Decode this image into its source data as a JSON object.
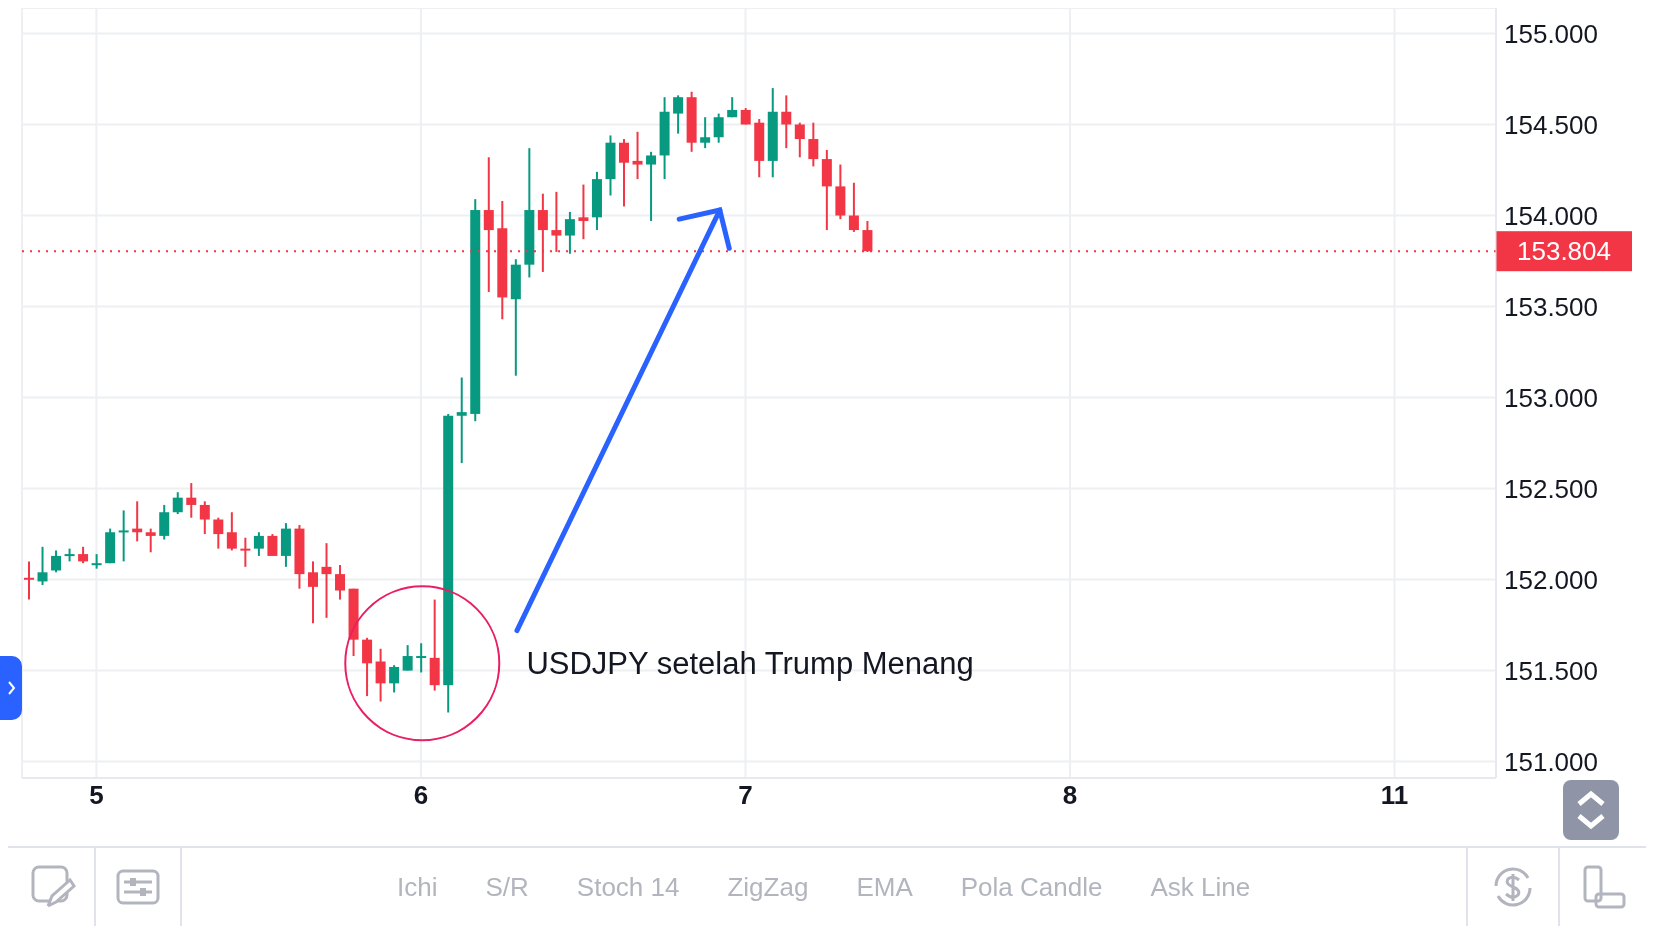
{
  "chart_data": {
    "type": "candlestick",
    "categories": [
      null,
      null,
      null,
      null,
      null,
      "5",
      null,
      null,
      null,
      null,
      null,
      null,
      null,
      null,
      null,
      null,
      null,
      null,
      null,
      null,
      null,
      null,
      null,
      null,
      null,
      null,
      null,
      null,
      null,
      "6",
      null,
      null,
      null,
      null,
      null,
      null,
      null,
      null,
      null,
      null,
      null,
      null,
      null,
      null,
      null,
      null,
      null,
      null,
      null,
      null,
      null,
      null,
      null,
      "7",
      null,
      null,
      null,
      null,
      null,
      null,
      null,
      null,
      null,
      null,
      null,
      null,
      null,
      null,
      null,
      null,
      null,
      null,
      null,
      null,
      null,
      null,
      null,
      "8",
      null,
      null,
      null,
      null,
      null,
      null,
      null,
      null,
      null,
      null,
      null,
      null,
      null,
      null,
      null,
      null,
      null,
      null,
      null,
      null,
      null,
      null,
      null,
      "11",
      null,
      null,
      null,
      null,
      null,
      null,
      null
    ],
    "ohlc": [
      [
        152.01,
        152.1,
        151.89,
        152.0
      ],
      [
        151.99,
        152.18,
        151.97,
        152.04
      ],
      [
        152.05,
        152.16,
        152.04,
        152.13
      ],
      [
        152.13,
        152.17,
        152.1,
        152.14
      ],
      [
        152.14,
        152.18,
        152.09,
        152.1
      ],
      [
        152.08,
        152.14,
        152.06,
        152.09
      ],
      [
        152.09,
        152.28,
        152.09,
        152.26
      ],
      [
        152.26,
        152.38,
        152.1,
        152.27
      ],
      [
        152.28,
        152.43,
        152.21,
        152.26
      ],
      [
        152.26,
        152.28,
        152.15,
        152.24
      ],
      [
        152.24,
        152.41,
        152.22,
        152.37
      ],
      [
        152.37,
        152.48,
        152.36,
        152.45
      ],
      [
        152.45,
        152.53,
        152.34,
        152.41
      ],
      [
        152.41,
        152.43,
        152.25,
        152.33
      ],
      [
        152.33,
        152.34,
        152.17,
        152.25
      ],
      [
        152.26,
        152.37,
        152.16,
        152.17
      ],
      [
        152.17,
        152.23,
        152.07,
        152.16
      ],
      [
        152.17,
        152.26,
        152.13,
        152.24
      ],
      [
        152.24,
        152.25,
        152.13,
        152.13
      ],
      [
        152.13,
        152.31,
        152.07,
        152.28
      ],
      [
        152.28,
        152.3,
        151.95,
        152.03
      ],
      [
        152.04,
        152.1,
        151.76,
        151.96
      ],
      [
        152.07,
        152.2,
        151.79,
        152.03
      ],
      [
        152.03,
        152.08,
        151.89,
        151.94
      ],
      [
        151.95,
        151.95,
        151.58,
        151.67
      ],
      [
        151.67,
        151.68,
        151.36,
        151.54
      ],
      [
        151.55,
        151.62,
        151.33,
        151.43
      ],
      [
        151.43,
        151.53,
        151.38,
        151.52
      ],
      [
        151.5,
        151.64,
        151.5,
        151.58
      ],
      [
        151.57,
        151.65,
        151.49,
        151.58
      ],
      [
        151.57,
        151.89,
        151.39,
        151.42
      ],
      [
        151.42,
        152.91,
        151.27,
        152.9
      ],
      [
        152.9,
        153.11,
        152.64,
        152.92
      ],
      [
        152.91,
        154.09,
        152.87,
        154.03
      ],
      [
        154.03,
        154.32,
        153.58,
        153.92
      ],
      [
        153.93,
        154.08,
        153.43,
        153.55
      ],
      [
        153.54,
        153.76,
        153.12,
        153.73
      ],
      [
        153.73,
        154.37,
        153.66,
        154.03
      ],
      [
        154.03,
        154.12,
        153.69,
        153.92
      ],
      [
        153.92,
        154.13,
        153.8,
        153.89
      ],
      [
        153.89,
        154.02,
        153.79,
        153.98
      ],
      [
        153.99,
        154.17,
        153.87,
        153.97
      ],
      [
        153.99,
        154.24,
        153.92,
        154.2
      ],
      [
        154.2,
        154.44,
        154.11,
        154.4
      ],
      [
        154.4,
        154.42,
        154.05,
        154.29
      ],
      [
        154.3,
        154.46,
        154.2,
        154.28
      ],
      [
        154.28,
        154.35,
        153.97,
        154.33
      ],
      [
        154.33,
        154.65,
        154.2,
        154.57
      ],
      [
        154.56,
        154.66,
        154.45,
        154.65
      ],
      [
        154.65,
        154.68,
        154.35,
        154.4
      ],
      [
        154.4,
        154.54,
        154.37,
        154.43
      ],
      [
        154.43,
        154.56,
        154.4,
        154.54
      ],
      [
        154.54,
        154.65,
        154.54,
        154.58
      ],
      [
        154.58,
        154.59,
        154.5,
        154.5
      ],
      [
        154.51,
        154.53,
        154.21,
        154.3
      ],
      [
        154.3,
        154.7,
        154.21,
        154.57
      ],
      [
        154.57,
        154.66,
        154.37,
        154.5
      ],
      [
        154.5,
        154.51,
        154.32,
        154.42
      ],
      [
        154.42,
        154.51,
        154.27,
        154.31
      ],
      [
        154.31,
        154.36,
        153.92,
        154.16
      ],
      [
        154.16,
        154.28,
        153.98,
        154.0
      ],
      [
        154.0,
        154.18,
        153.91,
        153.92
      ],
      [
        153.92,
        153.97,
        153.8,
        153.804
      ],
      null,
      null,
      null,
      null,
      null,
      null,
      null,
      null,
      null,
      null,
      null,
      null,
      null,
      null,
      null,
      null,
      null,
      null,
      null,
      null,
      null,
      null,
      null,
      null,
      null,
      null,
      null,
      null,
      null,
      null,
      null,
      null,
      null,
      null,
      null,
      null,
      null,
      null,
      null,
      null,
      null,
      null,
      null,
      null,
      null,
      null
    ],
    "ylim": [
      150.91,
      155.14
    ],
    "yticks": [
      {
        "value": 151,
        "label": "151.000"
      },
      {
        "value": 151.5,
        "label": "151.500"
      },
      {
        "value": 152,
        "label": "152.000"
      },
      {
        "value": 152.5,
        "label": "152.500"
      },
      {
        "value": 153,
        "label": "153.000"
      },
      {
        "value": 153.5,
        "label": "153.500"
      },
      {
        "value": 154,
        "label": "154.000"
      },
      {
        "value": 154.5,
        "label": "154.500"
      },
      {
        "value": 155,
        "label": "155.000"
      }
    ],
    "grid": true,
    "ref_lines": [
      {
        "axis": "y",
        "value": 153.804,
        "label": "153.804",
        "color": "#f23645",
        "line_style": "dotted"
      }
    ],
    "annotations": [
      "USDJPY setelah Trump Menang",
      "Ichi",
      "S/R",
      "Stoch 14",
      "ZigZag",
      "EMA",
      "Pola Candle",
      "Ask Line"
    ]
  }
}
